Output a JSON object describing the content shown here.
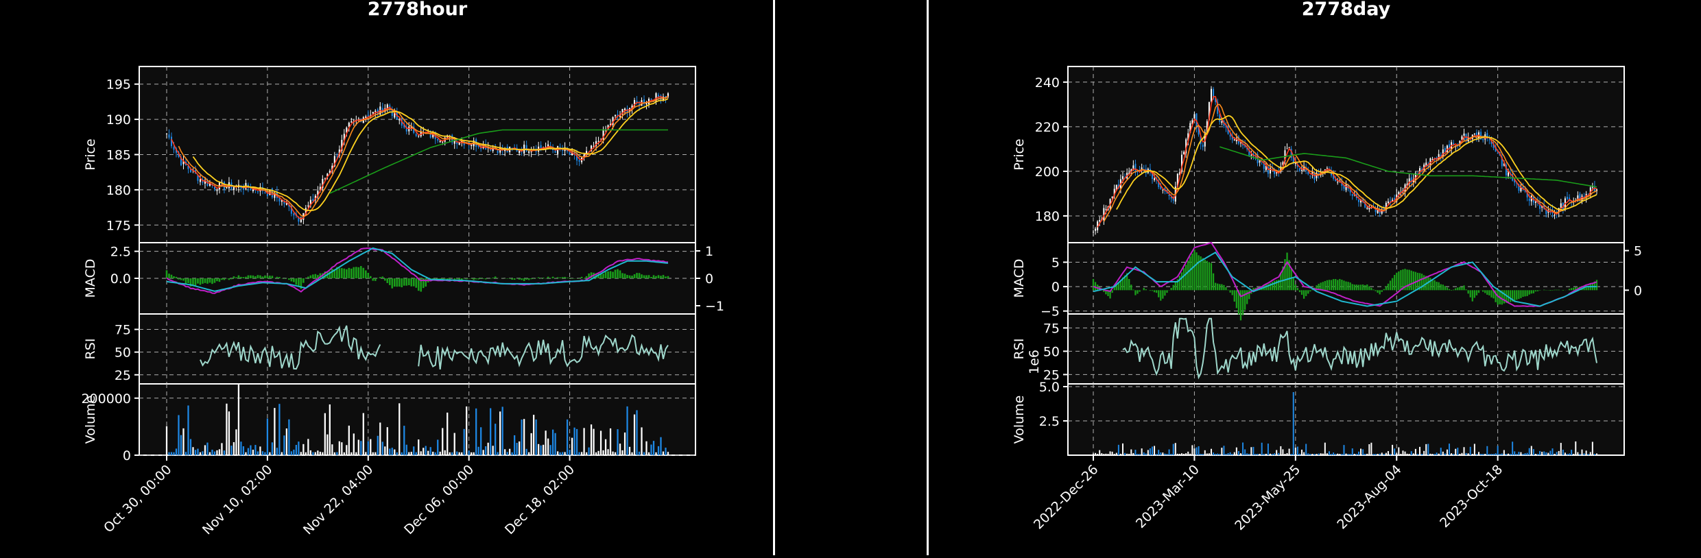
{
  "colors": {
    "background": "#000000",
    "plot_background": "#0d0d0d",
    "up": "#ffffff",
    "down": "#1e88e5",
    "ma_short": "#ff3b1f",
    "ma_mid": "#ff8c1a",
    "ma_long1": "#ffd21f",
    "ma_long2": "#1a9e1a",
    "macd_line": "#c020c8",
    "signal_line": "#20b8d0",
    "hist_pos": "#1a9e1a",
    "hist_neg": "#1a9e1a",
    "rsi": "#9fd8cc",
    "grid": "#b0b0b0",
    "axis_text": "#ffffff"
  },
  "chart_data": [
    {
      "type": "candlestick",
      "title": "2778hour",
      "x_tick_labels": [
        "Oct 30, 00:00",
        "Nov 10, 02:00",
        "Nov 22, 04:00",
        "Dec 06, 00:00",
        "Dec 18, 02:00"
      ],
      "candle_count": 210,
      "price": {
        "ylabel": "Price",
        "ylim": [
          172.5,
          197.5
        ],
        "yticks": [
          "175",
          "180",
          "185",
          "190",
          "195"
        ],
        "close_anchors": [
          [
            0,
            188
          ],
          [
            6,
            184
          ],
          [
            14,
            181.5
          ],
          [
            20,
            180.5
          ],
          [
            30,
            180.5
          ],
          [
            40,
            180
          ],
          [
            48,
            178.5
          ],
          [
            55,
            176
          ],
          [
            60,
            178
          ],
          [
            68,
            183
          ],
          [
            76,
            189
          ],
          [
            82,
            190.5
          ],
          [
            88,
            191
          ],
          [
            92,
            192
          ],
          [
            98,
            189
          ],
          [
            106,
            188
          ],
          [
            114,
            187.5
          ],
          [
            122,
            187
          ],
          [
            130,
            186.5
          ],
          [
            136,
            186
          ],
          [
            142,
            185.5
          ],
          [
            150,
            186
          ],
          [
            158,
            186
          ],
          [
            166,
            185.5
          ],
          [
            172,
            184
          ],
          [
            178,
            186
          ],
          [
            186,
            190
          ],
          [
            194,
            192
          ],
          [
            202,
            193
          ],
          [
            209,
            193.5
          ]
        ],
        "ma_long2_anchors": [
          [
            68,
            179.5
          ],
          [
            90,
            183
          ],
          [
            110,
            186
          ],
          [
            130,
            188
          ],
          [
            140,
            188.5
          ]
        ]
      },
      "macd": {
        "ylabel": "MACD",
        "ylim": [
          -3.3,
          3.3
        ],
        "yticks": [
          "0.0",
          "2.5"
        ],
        "right_ylim": [
          -1.3,
          1.3
        ],
        "right_yticks": [
          "−1",
          "0",
          "1"
        ],
        "macd_anchors": [
          [
            0,
            0
          ],
          [
            10,
            -0.9
          ],
          [
            20,
            -1.4
          ],
          [
            30,
            -0.6
          ],
          [
            40,
            -0.3
          ],
          [
            50,
            -0.5
          ],
          [
            56,
            -1.2
          ],
          [
            62,
            -0.2
          ],
          [
            72,
            1.5
          ],
          [
            82,
            2.8
          ],
          [
            90,
            2.6
          ],
          [
            98,
            1.2
          ],
          [
            106,
            -0.2
          ],
          [
            120,
            -0.2
          ],
          [
            136,
            -0.4
          ],
          [
            150,
            -0.6
          ],
          [
            166,
            -0.3
          ],
          [
            174,
            -0.2
          ],
          [
            180,
            0.5
          ],
          [
            188,
            1.6
          ],
          [
            196,
            1.8
          ],
          [
            209,
            1.5
          ]
        ],
        "signal_anchors": [
          [
            0,
            -0.3
          ],
          [
            10,
            -0.6
          ],
          [
            20,
            -1.2
          ],
          [
            30,
            -0.7
          ],
          [
            40,
            -0.4
          ],
          [
            50,
            -0.5
          ],
          [
            58,
            -0.9
          ],
          [
            66,
            0.2
          ],
          [
            76,
            1.6
          ],
          [
            86,
            2.8
          ],
          [
            94,
            2.3
          ],
          [
            102,
            0.8
          ],
          [
            110,
            -0.1
          ],
          [
            124,
            -0.2
          ],
          [
            140,
            -0.5
          ],
          [
            156,
            -0.5
          ],
          [
            168,
            -0.3
          ],
          [
            176,
            -0.2
          ],
          [
            184,
            0.8
          ],
          [
            192,
            1.6
          ],
          [
            200,
            1.6
          ],
          [
            209,
            1.4
          ]
        ]
      },
      "rsi": {
        "ylabel": "RSI",
        "ylim": [
          15,
          92
        ],
        "yticks": [
          "25",
          "50",
          "75"
        ],
        "gap": [
          90,
          104
        ]
      },
      "volume": {
        "ylabel": "Volume",
        "ylim": [
          0,
          250000
        ],
        "yticks": [
          "0",
          "200000"
        ],
        "peak": 250000
      }
    },
    {
      "type": "candlestick",
      "title": "2778day",
      "x_tick_labels": [
        "2022-Dec-26",
        "2023-Mar-10",
        "2023-May-25",
        "2023-Aug-04",
        "2023-Oct-18"
      ],
      "candle_count": 240,
      "price": {
        "ylabel": "Price",
        "ylim": [
          168,
          247
        ],
        "yticks": [
          "180",
          "200",
          "220",
          "240"
        ],
        "close_anchors": [
          [
            0,
            172
          ],
          [
            8,
            188
          ],
          [
            16,
            200
          ],
          [
            24,
            202
          ],
          [
            32,
            192
          ],
          [
            38,
            188
          ],
          [
            44,
            215
          ],
          [
            48,
            225
          ],
          [
            52,
            210
          ],
          [
            56,
            238
          ],
          [
            60,
            222
          ],
          [
            66,
            215
          ],
          [
            72,
            210
          ],
          [
            78,
            205
          ],
          [
            84,
            200
          ],
          [
            88,
            198
          ],
          [
            92,
            212
          ],
          [
            96,
            203
          ],
          [
            104,
            198
          ],
          [
            112,
            200
          ],
          [
            120,
            193
          ],
          [
            128,
            186
          ],
          [
            136,
            182
          ],
          [
            144,
            190
          ],
          [
            152,
            198
          ],
          [
            160,
            204
          ],
          [
            168,
            210
          ],
          [
            176,
            215
          ],
          [
            184,
            216
          ],
          [
            190,
            212
          ],
          [
            196,
            200
          ],
          [
            204,
            190
          ],
          [
            212,
            185
          ],
          [
            218,
            180
          ],
          [
            224,
            186
          ],
          [
            232,
            188
          ],
          [
            239,
            193
          ]
        ],
        "ma_long2_anchors": [
          [
            60,
            211
          ],
          [
            80,
            205
          ],
          [
            100,
            208
          ],
          [
            120,
            206
          ],
          [
            140,
            200
          ],
          [
            160,
            198
          ],
          [
            180,
            198
          ],
          [
            200,
            197
          ],
          [
            220,
            196
          ],
          [
            239,
            193
          ]
        ]
      },
      "macd": {
        "ylabel": "MACD",
        "ylim": [
          -5.6,
          9
        ],
        "yticks": [
          "−5",
          "0",
          "5"
        ],
        "right_ylim": [
          -3,
          6
        ],
        "right_yticks": [
          "0",
          "5"
        ],
        "macd_anchors": [
          [
            0,
            0
          ],
          [
            8,
            -1
          ],
          [
            16,
            4
          ],
          [
            24,
            3
          ],
          [
            32,
            0
          ],
          [
            40,
            2
          ],
          [
            48,
            8
          ],
          [
            56,
            9
          ],
          [
            62,
            5
          ],
          [
            70,
            -2
          ],
          [
            80,
            0
          ],
          [
            88,
            2
          ],
          [
            92,
            5
          ],
          [
            100,
            0
          ],
          [
            112,
            -1
          ],
          [
            124,
            -3
          ],
          [
            136,
            -4
          ],
          [
            148,
            0
          ],
          [
            164,
            3
          ],
          [
            176,
            5
          ],
          [
            184,
            3
          ],
          [
            192,
            -2
          ],
          [
            200,
            -4
          ],
          [
            212,
            -4
          ],
          [
            224,
            -2
          ],
          [
            232,
            0
          ],
          [
            239,
            1
          ]
        ],
        "signal_anchors": [
          [
            0,
            -1
          ],
          [
            10,
            0
          ],
          [
            20,
            4
          ],
          [
            30,
            1
          ],
          [
            40,
            1
          ],
          [
            50,
            5
          ],
          [
            58,
            7
          ],
          [
            66,
            2
          ],
          [
            76,
            -1
          ],
          [
            88,
            1
          ],
          [
            96,
            2
          ],
          [
            106,
            -1
          ],
          [
            118,
            -3
          ],
          [
            130,
            -4
          ],
          [
            144,
            -3
          ],
          [
            156,
            0
          ],
          [
            170,
            4
          ],
          [
            180,
            5
          ],
          [
            190,
            0
          ],
          [
            200,
            -3
          ],
          [
            212,
            -4
          ],
          [
            224,
            -2
          ],
          [
            234,
            0
          ],
          [
            239,
            0
          ]
        ]
      },
      "rsi": {
        "ylabel": "RSI",
        "ylim": [
          15,
          90
        ],
        "yticks": [
          "25",
          "50",
          "75"
        ],
        "gap": [
          0,
          14
        ]
      },
      "volume": {
        "ylabel": "Volume",
        "ylim": [
          0,
          5.2
        ],
        "yticks": [
          "2.5",
          "5.0"
        ],
        "exponent_label": "1e6",
        "peak": 4.6
      }
    }
  ]
}
